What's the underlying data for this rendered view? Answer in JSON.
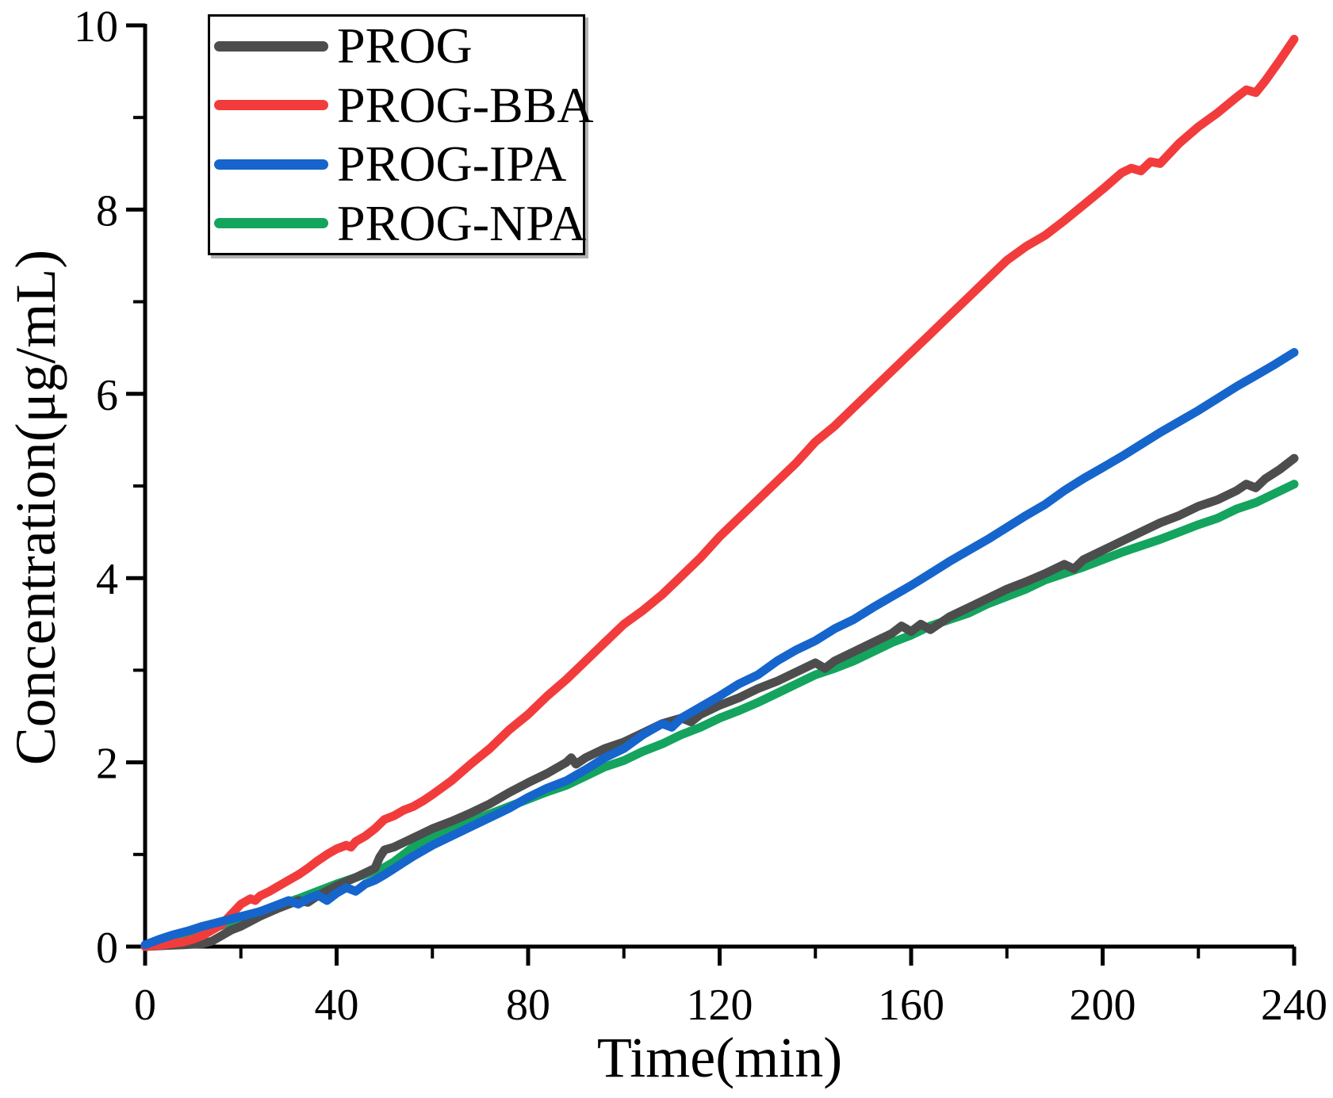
{
  "figure": {
    "background": "#ffffff",
    "axis_color": "#000000",
    "text_color": "#000000"
  },
  "chart_data": {
    "type": "line",
    "title": "",
    "xlabel": "Time(min)",
    "ylabel": "Concentration(μg/mL)",
    "xlim": [
      0,
      240
    ],
    "ylim": [
      0,
      10
    ],
    "x_major_ticks": [
      0,
      40,
      80,
      120,
      160,
      200,
      240
    ],
    "x_minor_ticks": [
      20,
      60,
      100,
      140,
      180,
      220
    ],
    "y_major_ticks": [
      0,
      2,
      4,
      6,
      8,
      10
    ],
    "y_minor_ticks": [
      1,
      3,
      5,
      7,
      9
    ],
    "grid": false,
    "legend_position": "top-left",
    "tick_direction": "out",
    "series": [
      {
        "name": "PROG",
        "color": "#4d4d4d",
        "points": [
          [
            0,
            0
          ],
          [
            4,
            0.01
          ],
          [
            8,
            0.02
          ],
          [
            12,
            0.03
          ],
          [
            14,
            0.06
          ],
          [
            16,
            0.12
          ],
          [
            18,
            0.18
          ],
          [
            20,
            0.22
          ],
          [
            24,
            0.33
          ],
          [
            28,
            0.42
          ],
          [
            32,
            0.5
          ],
          [
            34,
            0.48
          ],
          [
            36,
            0.55
          ],
          [
            40,
            0.66
          ],
          [
            44,
            0.75
          ],
          [
            48,
            0.85
          ],
          [
            49,
            0.97
          ],
          [
            50,
            1.05
          ],
          [
            52,
            1.08
          ],
          [
            56,
            1.18
          ],
          [
            60,
            1.28
          ],
          [
            64,
            1.36
          ],
          [
            68,
            1.45
          ],
          [
            72,
            1.55
          ],
          [
            76,
            1.67
          ],
          [
            80,
            1.78
          ],
          [
            84,
            1.88
          ],
          [
            88,
            2.0
          ],
          [
            89,
            2.05
          ],
          [
            90,
            1.98
          ],
          [
            92,
            2.05
          ],
          [
            96,
            2.15
          ],
          [
            100,
            2.22
          ],
          [
            104,
            2.32
          ],
          [
            108,
            2.42
          ],
          [
            112,
            2.48
          ],
          [
            114,
            2.44
          ],
          [
            116,
            2.52
          ],
          [
            120,
            2.62
          ],
          [
            124,
            2.7
          ],
          [
            128,
            2.8
          ],
          [
            132,
            2.88
          ],
          [
            136,
            2.98
          ],
          [
            140,
            3.08
          ],
          [
            142,
            3.02
          ],
          [
            144,
            3.1
          ],
          [
            148,
            3.2
          ],
          [
            152,
            3.3
          ],
          [
            156,
            3.4
          ],
          [
            158,
            3.48
          ],
          [
            160,
            3.42
          ],
          [
            162,
            3.5
          ],
          [
            164,
            3.44
          ],
          [
            168,
            3.58
          ],
          [
            172,
            3.68
          ],
          [
            176,
            3.78
          ],
          [
            180,
            3.88
          ],
          [
            184,
            3.96
          ],
          [
            188,
            4.05
          ],
          [
            192,
            4.15
          ],
          [
            194,
            4.1
          ],
          [
            196,
            4.2
          ],
          [
            200,
            4.3
          ],
          [
            204,
            4.4
          ],
          [
            208,
            4.5
          ],
          [
            212,
            4.6
          ],
          [
            216,
            4.68
          ],
          [
            220,
            4.78
          ],
          [
            224,
            4.85
          ],
          [
            228,
            4.95
          ],
          [
            230,
            5.02
          ],
          [
            232,
            4.98
          ],
          [
            234,
            5.08
          ],
          [
            237,
            5.18
          ],
          [
            240,
            5.3
          ]
        ]
      },
      {
        "name": "PROG-BBA",
        "color": "#f23c3c",
        "points": [
          [
            0,
            0
          ],
          [
            4,
            0.02
          ],
          [
            8,
            0.05
          ],
          [
            10,
            0.08
          ],
          [
            12,
            0.12
          ],
          [
            14,
            0.18
          ],
          [
            16,
            0.24
          ],
          [
            18,
            0.35
          ],
          [
            20,
            0.46
          ],
          [
            22,
            0.52
          ],
          [
            23,
            0.5
          ],
          [
            24,
            0.55
          ],
          [
            26,
            0.6
          ],
          [
            28,
            0.66
          ],
          [
            30,
            0.72
          ],
          [
            32,
            0.78
          ],
          [
            34,
            0.85
          ],
          [
            36,
            0.93
          ],
          [
            38,
            1.0
          ],
          [
            40,
            1.06
          ],
          [
            42,
            1.1
          ],
          [
            43,
            1.08
          ],
          [
            44,
            1.14
          ],
          [
            46,
            1.2
          ],
          [
            48,
            1.28
          ],
          [
            50,
            1.38
          ],
          [
            52,
            1.42
          ],
          [
            54,
            1.48
          ],
          [
            56,
            1.52
          ],
          [
            58,
            1.58
          ],
          [
            60,
            1.65
          ],
          [
            64,
            1.8
          ],
          [
            68,
            1.98
          ],
          [
            72,
            2.15
          ],
          [
            76,
            2.35
          ],
          [
            80,
            2.52
          ],
          [
            84,
            2.72
          ],
          [
            88,
            2.9
          ],
          [
            92,
            3.1
          ],
          [
            96,
            3.3
          ],
          [
            100,
            3.5
          ],
          [
            104,
            3.65
          ],
          [
            108,
            3.82
          ],
          [
            112,
            4.02
          ],
          [
            116,
            4.22
          ],
          [
            120,
            4.45
          ],
          [
            124,
            4.65
          ],
          [
            128,
            4.85
          ],
          [
            132,
            5.05
          ],
          [
            136,
            5.25
          ],
          [
            140,
            5.48
          ],
          [
            144,
            5.65
          ],
          [
            148,
            5.85
          ],
          [
            152,
            6.05
          ],
          [
            156,
            6.25
          ],
          [
            160,
            6.45
          ],
          [
            164,
            6.65
          ],
          [
            168,
            6.85
          ],
          [
            172,
            7.05
          ],
          [
            176,
            7.25
          ],
          [
            180,
            7.45
          ],
          [
            184,
            7.6
          ],
          [
            188,
            7.72
          ],
          [
            192,
            7.88
          ],
          [
            196,
            8.05
          ],
          [
            200,
            8.22
          ],
          [
            204,
            8.4
          ],
          [
            206,
            8.45
          ],
          [
            208,
            8.42
          ],
          [
            210,
            8.52
          ],
          [
            212,
            8.5
          ],
          [
            216,
            8.72
          ],
          [
            220,
            8.9
          ],
          [
            224,
            9.05
          ],
          [
            228,
            9.22
          ],
          [
            230,
            9.3
          ],
          [
            232,
            9.27
          ],
          [
            234,
            9.4
          ],
          [
            237,
            9.62
          ],
          [
            240,
            9.85
          ]
        ]
      },
      {
        "name": "PROG-IPA",
        "color": "#1565cc",
        "points": [
          [
            0,
            0.02
          ],
          [
            3,
            0.08
          ],
          [
            6,
            0.13
          ],
          [
            9,
            0.17
          ],
          [
            12,
            0.22
          ],
          [
            15,
            0.26
          ],
          [
            18,
            0.3
          ],
          [
            21,
            0.34
          ],
          [
            24,
            0.38
          ],
          [
            27,
            0.44
          ],
          [
            30,
            0.5
          ],
          [
            32,
            0.46
          ],
          [
            34,
            0.52
          ],
          [
            36,
            0.56
          ],
          [
            38,
            0.5
          ],
          [
            40,
            0.58
          ],
          [
            42,
            0.64
          ],
          [
            44,
            0.6
          ],
          [
            46,
            0.68
          ],
          [
            48,
            0.72
          ],
          [
            50,
            0.78
          ],
          [
            53,
            0.88
          ],
          [
            56,
            0.98
          ],
          [
            60,
            1.1
          ],
          [
            64,
            1.2
          ],
          [
            68,
            1.3
          ],
          [
            72,
            1.4
          ],
          [
            76,
            1.5
          ],
          [
            80,
            1.62
          ],
          [
            84,
            1.72
          ],
          [
            88,
            1.8
          ],
          [
            92,
            1.92
          ],
          [
            96,
            2.05
          ],
          [
            100,
            2.15
          ],
          [
            104,
            2.3
          ],
          [
            108,
            2.42
          ],
          [
            110,
            2.38
          ],
          [
            112,
            2.48
          ],
          [
            116,
            2.6
          ],
          [
            120,
            2.72
          ],
          [
            124,
            2.85
          ],
          [
            128,
            2.95
          ],
          [
            132,
            3.1
          ],
          [
            136,
            3.22
          ],
          [
            140,
            3.32
          ],
          [
            144,
            3.45
          ],
          [
            148,
            3.55
          ],
          [
            152,
            3.68
          ],
          [
            156,
            3.8
          ],
          [
            160,
            3.92
          ],
          [
            164,
            4.05
          ],
          [
            168,
            4.18
          ],
          [
            172,
            4.3
          ],
          [
            176,
            4.42
          ],
          [
            180,
            4.55
          ],
          [
            184,
            4.68
          ],
          [
            188,
            4.8
          ],
          [
            192,
            4.95
          ],
          [
            196,
            5.08
          ],
          [
            200,
            5.2
          ],
          [
            204,
            5.32
          ],
          [
            208,
            5.45
          ],
          [
            212,
            5.58
          ],
          [
            216,
            5.7
          ],
          [
            220,
            5.82
          ],
          [
            224,
            5.95
          ],
          [
            228,
            6.08
          ],
          [
            232,
            6.2
          ],
          [
            236,
            6.32
          ],
          [
            240,
            6.45
          ]
        ]
      },
      {
        "name": "PROG-NPA",
        "color": "#14a45e",
        "points": [
          [
            0,
            0
          ],
          [
            4,
            0.05
          ],
          [
            8,
            0.11
          ],
          [
            12,
            0.17
          ],
          [
            16,
            0.23
          ],
          [
            20,
            0.31
          ],
          [
            24,
            0.38
          ],
          [
            28,
            0.45
          ],
          [
            32,
            0.52
          ],
          [
            36,
            0.6
          ],
          [
            40,
            0.68
          ],
          [
            44,
            0.75
          ],
          [
            48,
            0.82
          ],
          [
            50,
            0.86
          ],
          [
            52,
            0.92
          ],
          [
            56,
            1.08
          ],
          [
            60,
            1.2
          ],
          [
            64,
            1.27
          ],
          [
            68,
            1.35
          ],
          [
            72,
            1.44
          ],
          [
            76,
            1.52
          ],
          [
            80,
            1.6
          ],
          [
            84,
            1.68
          ],
          [
            88,
            1.75
          ],
          [
            92,
            1.85
          ],
          [
            96,
            1.95
          ],
          [
            100,
            2.02
          ],
          [
            104,
            2.12
          ],
          [
            108,
            2.2
          ],
          [
            112,
            2.3
          ],
          [
            116,
            2.38
          ],
          [
            120,
            2.48
          ],
          [
            124,
            2.56
          ],
          [
            128,
            2.65
          ],
          [
            132,
            2.75
          ],
          [
            136,
            2.85
          ],
          [
            140,
            2.95
          ],
          [
            144,
            3.02
          ],
          [
            148,
            3.1
          ],
          [
            152,
            3.2
          ],
          [
            156,
            3.3
          ],
          [
            160,
            3.38
          ],
          [
            164,
            3.48
          ],
          [
            168,
            3.55
          ],
          [
            172,
            3.62
          ],
          [
            176,
            3.72
          ],
          [
            180,
            3.8
          ],
          [
            184,
            3.88
          ],
          [
            188,
            3.98
          ],
          [
            192,
            4.05
          ],
          [
            196,
            4.12
          ],
          [
            200,
            4.2
          ],
          [
            204,
            4.28
          ],
          [
            208,
            4.35
          ],
          [
            212,
            4.42
          ],
          [
            216,
            4.5
          ],
          [
            220,
            4.58
          ],
          [
            224,
            4.65
          ],
          [
            228,
            4.75
          ],
          [
            232,
            4.82
          ],
          [
            236,
            4.92
          ],
          [
            240,
            5.02
          ]
        ]
      }
    ]
  }
}
